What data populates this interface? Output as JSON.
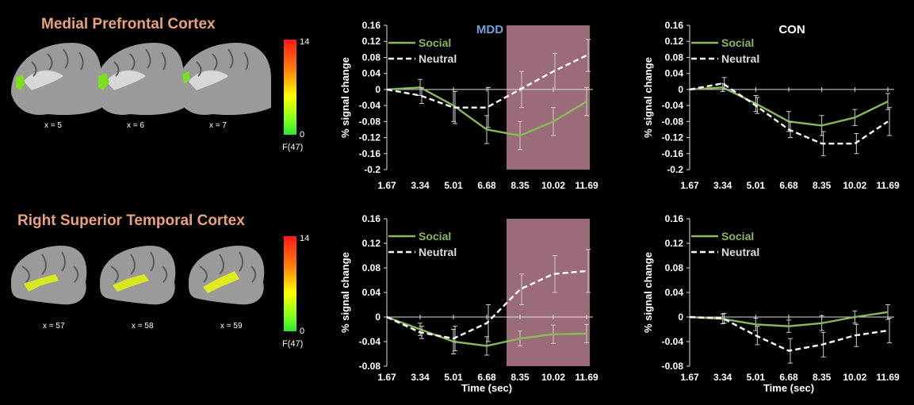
{
  "figure": {
    "regions": [
      {
        "title": "Medial Prefrontal Cortex",
        "slices": [
          "x = 5",
          "x = 6",
          "x = 7"
        ],
        "colorbar": {
          "max": "14",
          "min": "0",
          "label": "F(47)"
        }
      },
      {
        "title": "Right Superior Temporal Cortex",
        "slices": [
          "x = 57",
          "x = 58",
          "x = 59"
        ],
        "colorbar": {
          "max": "14",
          "min": "0",
          "label": "F(47)"
        }
      }
    ],
    "colors": {
      "social": "#8ab85c",
      "neutral": "#ffffff",
      "highlight": "#9c6b78",
      "title_mdd": "#6aa4d8",
      "region_title": "#e9a37c"
    }
  },
  "chart_data": [
    {
      "type": "line",
      "title": "MDD",
      "ylabel": "% signal change",
      "xlabel": "",
      "categories": [
        "1.67",
        "3.34",
        "5.01",
        "6.68",
        "8.35",
        "10.02",
        "11.69"
      ],
      "ylim": [
        -0.2,
        0.16
      ],
      "yticks": [
        "0.16",
        "0.12",
        "0.08",
        "0.04",
        "0",
        "-0.04",
        "-0.08",
        "-0.12",
        "-0.16",
        "-0.2"
      ],
      "legend": "top-left",
      "highlight_range": [
        "8.35",
        "11.69"
      ],
      "series": [
        {
          "name": "Social",
          "values": [
            0,
            0.005,
            -0.04,
            -0.1,
            -0.115,
            -0.08,
            -0.03
          ],
          "errors": [
            0,
            0.02,
            0.04,
            0.035,
            0.035,
            0.035,
            0.035
          ]
        },
        {
          "name": "Neutral",
          "values": [
            0,
            -0.015,
            -0.045,
            -0.045,
            0,
            0.045,
            0.085
          ],
          "errors": [
            0,
            0.02,
            0.04,
            0.05,
            0.045,
            0.045,
            0.04
          ]
        }
      ]
    },
    {
      "type": "line",
      "title": "CON",
      "ylabel": "% signal change",
      "xlabel": "",
      "categories": [
        "1.67",
        "3.34",
        "5.01",
        "6.68",
        "8.35",
        "10.02",
        "11.69"
      ],
      "ylim": [
        -0.2,
        0.16
      ],
      "yticks": [
        "0.16",
        "0.12",
        "0.08",
        "0.04",
        "0",
        "-0.04",
        "-0.08",
        "-0.12",
        "-0.16",
        "-0.2"
      ],
      "legend": "top-left",
      "series": [
        {
          "name": "Social",
          "values": [
            0,
            0.005,
            -0.035,
            -0.08,
            -0.09,
            -0.07,
            -0.03
          ],
          "errors": [
            0,
            0.01,
            0.02,
            0.025,
            0.025,
            0.02,
            0.02
          ]
        },
        {
          "name": "Neutral",
          "values": [
            0,
            0.015,
            -0.04,
            -0.1,
            -0.135,
            -0.135,
            -0.08
          ],
          "errors": [
            0,
            0.015,
            0.02,
            0.02,
            0.03,
            0.025,
            0.035
          ]
        }
      ]
    },
    {
      "type": "line",
      "title": "",
      "ylabel": "% signal change",
      "xlabel": "Time (sec)",
      "categories": [
        "1.67",
        "3.34",
        "5.01",
        "6.68",
        "8.35",
        "10.02",
        "11.69"
      ],
      "ylim": [
        -0.08,
        0.16
      ],
      "yticks": [
        "0.16",
        "0.12",
        "0.08",
        "0.04",
        "0",
        "-0.04",
        "-0.08"
      ],
      "legend": "top-left",
      "highlight_range": [
        "8.35",
        "11.69"
      ],
      "series": [
        {
          "name": "Social",
          "values": [
            0,
            -0.02,
            -0.04,
            -0.047,
            -0.035,
            -0.028,
            -0.027
          ],
          "errors": [
            0,
            0.01,
            0.02,
            0.015,
            0.012,
            0.015,
            0.015
          ]
        },
        {
          "name": "Neutral",
          "values": [
            0,
            -0.025,
            -0.035,
            -0.01,
            0.045,
            0.07,
            0.075
          ],
          "errors": [
            0,
            0.01,
            0.02,
            0.03,
            0.025,
            0.03,
            0.035
          ]
        }
      ]
    },
    {
      "type": "line",
      "title": "",
      "ylabel": "% signal change",
      "xlabel": "Time (sec)",
      "categories": [
        "1.67",
        "3.34",
        "5.01",
        "6.68",
        "8.35",
        "10.02",
        "11.69"
      ],
      "ylim": [
        -0.08,
        0.16
      ],
      "yticks": [
        "0.16",
        "0.12",
        "0.08",
        "0.04",
        "0",
        "-0.04",
        "-0.08"
      ],
      "legend": "top-left",
      "series": [
        {
          "name": "Social",
          "values": [
            0,
            -0.003,
            -0.012,
            -0.015,
            -0.01,
            0,
            0.008
          ],
          "errors": [
            0,
            0.008,
            0.01,
            0.01,
            0.012,
            0.01,
            0.012
          ]
        },
        {
          "name": "Neutral",
          "values": [
            0,
            -0.002,
            -0.03,
            -0.055,
            -0.045,
            -0.03,
            -0.022
          ],
          "errors": [
            0,
            0.008,
            0.015,
            0.02,
            0.02,
            0.018,
            0.02
          ]
        }
      ]
    }
  ]
}
